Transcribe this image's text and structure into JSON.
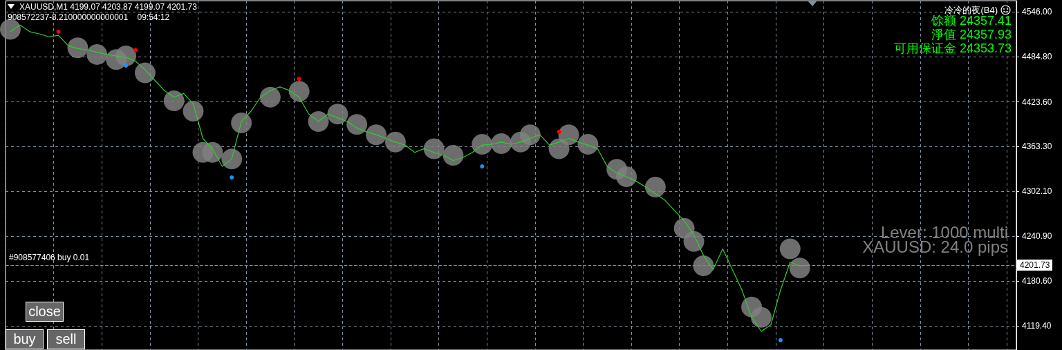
{
  "chart_data": {
    "type": "line",
    "title": "XAUUSD,M1  4199.07 4203.87 4199.07 4201.73",
    "subtitle": "908572237-8.210000000000001    09:54:12",
    "annotations": [
      "冷冷的夜(B4)",
      "馀额 24357.41",
      "淨值 24357.93",
      "可用保证金 24353.73",
      "Lever: 1000 multi",
      "XAUUSD: 24.0 pips",
      "close",
      "buy",
      "sell",
      "4201.73"
    ],
    "categories": [
      null,
      null,
      null,
      null,
      null,
      null,
      null,
      null,
      null,
      null,
      null,
      null,
      null,
      null,
      null,
      null,
      null,
      null,
      null,
      null,
      null,
      null,
      null,
      null,
      null,
      null,
      null,
      null,
      null,
      null,
      null,
      null,
      null,
      null,
      null,
      null,
      null,
      null,
      null,
      null,
      null,
      null,
      null,
      null,
      null,
      null,
      null,
      null,
      null,
      null,
      null,
      null,
      null,
      null,
      null,
      null,
      null,
      null,
      null,
      null,
      null,
      null,
      null,
      null,
      null,
      null,
      null,
      null,
      null,
      null,
      null,
      null,
      null,
      null,
      null,
      null,
      null,
      null,
      null,
      null,
      null,
      null,
      null,
      null,
      null,
      null,
      null,
      null,
      null,
      null,
      null,
      null,
      null,
      null,
      null,
      null,
      null,
      null,
      null,
      null,
      null,
      null,
      null,
      null,
      null
    ],
    "series": [
      {
        "type": "scatter",
        "marker": "circle",
        "color": "#808080",
        "values": [
          4522,
          null,
          null,
          null,
          null,
          null,
          null,
          4497,
          null,
          4488,
          null,
          4481,
          4486,
          null,
          4463,
          null,
          null,
          4425,
          null,
          4411,
          4355,
          4355,
          null,
          4346,
          4395,
          null,
          null,
          4430,
          null,
          null,
          4438,
          null,
          4397,
          null,
          4407,
          null,
          4393,
          null,
          4379,
          null,
          4369,
          null,
          null,
          null,
          4360,
          null,
          4351,
          null,
          null,
          4366,
          null,
          4367,
          null,
          4369,
          4379,
          null,
          null,
          4360,
          4379,
          null,
          4366,
          null,
          null,
          4332,
          4322,
          null,
          null,
          4308,
          null,
          null,
          4252,
          4234,
          4201,
          null,
          null,
          null,
          null,
          4145,
          4131,
          null,
          null,
          4224,
          4198,
          null,
          null,
          null,
          null,
          null,
          null,
          null,
          null,
          null,
          null,
          null,
          null,
          null,
          null,
          null,
          null,
          null,
          null,
          null,
          null,
          null,
          null
        ]
      },
      {
        "marker": "none",
        "color": "#32cd32",
        "values": [
          4519,
          4528,
          4519,
          4516,
          4512,
          4514,
          4500,
          4496,
          4494,
          4491,
          4488,
          4486,
          4484,
          4479,
          4467,
          4453,
          4439,
          4430,
          4435,
          4421,
          4374,
          4360,
          4336,
          4346,
          4397,
          4411,
          4430,
          4439,
          4444,
          4439,
          4430,
          4407,
          4397,
          4407,
          4402,
          4397,
          4388,
          4383,
          4379,
          4374,
          4369,
          4365,
          4355,
          4360,
          4355,
          4351,
          4344,
          4348,
          4355,
          4365,
          4366,
          4369,
          4366,
          4369,
          4374,
          4379,
          4365,
          4369,
          4374,
          4369,
          4365,
          4360,
          4336,
          4327,
          4322,
          4316,
          4308,
          4299,
          4290,
          4276,
          4262,
          4243,
          4215,
          4196,
          4224,
          4196,
          4168,
          4131,
          4112,
          4121,
          4168,
          4206,
          4201,
          4202,
          null,
          null,
          null,
          null,
          null,
          null,
          null,
          null,
          null,
          null,
          null,
          null,
          null,
          null,
          null,
          null,
          null,
          null,
          null,
          null,
          null
        ]
      },
      {
        "type": "scatter",
        "marker": "circle",
        "color": "#ff0000",
        "values": [
          null,
          null,
          null,
          null,
          null,
          4519,
          null,
          null,
          null,
          null,
          null,
          null,
          null,
          4494,
          null,
          null,
          null,
          null,
          null,
          null,
          null,
          null,
          null,
          null,
          null,
          null,
          null,
          null,
          null,
          null,
          4455,
          null,
          null,
          null,
          null,
          null,
          null,
          null,
          null,
          null,
          null,
          null,
          null,
          null,
          null,
          null,
          null,
          null,
          null,
          null,
          null,
          null,
          null,
          null,
          null,
          null,
          null,
          4383,
          null,
          null,
          null,
          null,
          null,
          null,
          null,
          null,
          null,
          null,
          null,
          null,
          null,
          null,
          null,
          null,
          null,
          null,
          null,
          null,
          null,
          null,
          null,
          null,
          null,
          null,
          null,
          null,
          null,
          null,
          null,
          null,
          null,
          null,
          null,
          null,
          null,
          null,
          null,
          null,
          null,
          null,
          null,
          null,
          null,
          null,
          null
        ]
      },
      {
        "type": "scatter",
        "marker": "circle",
        "color": "#1e90ff",
        "values": [
          null,
          null,
          null,
          null,
          null,
          null,
          null,
          null,
          null,
          null,
          null,
          null,
          4473,
          null,
          null,
          null,
          null,
          null,
          null,
          null,
          null,
          null,
          null,
          4321,
          null,
          null,
          null,
          null,
          null,
          null,
          null,
          null,
          null,
          null,
          null,
          null,
          null,
          null,
          null,
          null,
          null,
          null,
          null,
          null,
          null,
          null,
          null,
          null,
          null,
          4336,
          null,
          null,
          null,
          null,
          null,
          null,
          null,
          null,
          null,
          null,
          null,
          null,
          null,
          null,
          null,
          null,
          null,
          null,
          null,
          null,
          null,
          null,
          null,
          null,
          null,
          null,
          null,
          null,
          null,
          null,
          4100,
          null,
          null,
          null,
          null,
          null,
          null,
          null,
          null,
          null,
          null,
          null,
          null,
          null,
          null,
          null,
          null,
          null,
          null,
          null,
          null,
          null,
          null,
          null,
          null
        ]
      }
    ],
    "ylim": [
      4086.7,
      4561.0
    ],
    "yticks": [
      {
        "value": 4119.4,
        "label": "4119.40"
      },
      {
        "value": 4180.6,
        "label": "4180.60"
      },
      {
        "value": 4240.9,
        "label": "4240.90"
      },
      {
        "value": 4302.1,
        "label": "4302.10"
      },
      {
        "value": 4363.3,
        "label": "4363.30"
      },
      {
        "value": 4423.6,
        "label": "4423.60"
      },
      {
        "value": 4484.8,
        "label": "4484.80"
      },
      {
        "value": 4546.0,
        "label": "4546.00"
      }
    ],
    "ref_lines": [
      {
        "axis": "y",
        "value": 4201.73,
        "label": "#908577406 buy 0.01",
        "color": "#32cd32",
        "line_style": "dashed"
      }
    ],
    "grid": true,
    "tick_labels": "y"
  }
}
